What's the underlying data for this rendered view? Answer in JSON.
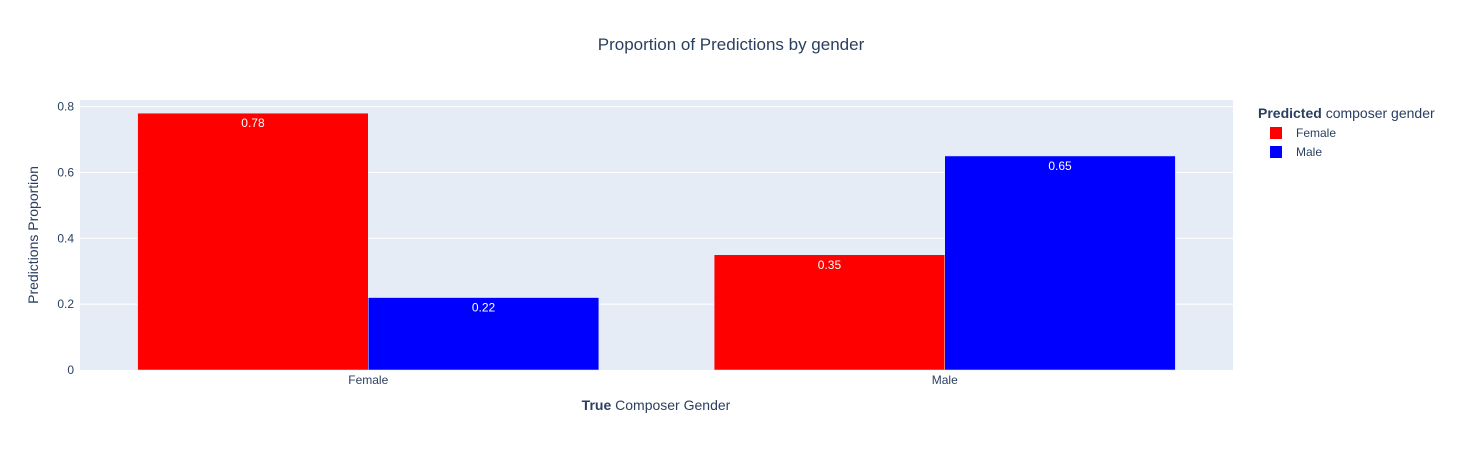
{
  "chart_data": {
    "type": "bar",
    "title": "Proportion of Predictions by gender",
    "xlabel_bold": "True",
    "xlabel_rest": " Composer Gender",
    "ylabel": "Predictions Proportion",
    "categories": [
      "Female",
      "Male"
    ],
    "series": [
      {
        "name": "Female",
        "color": "#ff0000",
        "values": [
          0.78,
          0.35
        ],
        "labels": [
          "0.78",
          "0.35"
        ]
      },
      {
        "name": "Male",
        "color": "#0000ff",
        "values": [
          0.22,
          0.65
        ],
        "labels": [
          "0.22",
          "0.65"
        ]
      }
    ],
    "ylim": [
      0,
      0.82
    ],
    "yticks": [
      0,
      0.2,
      0.4,
      0.6,
      0.8
    ],
    "ytick_labels": [
      "0",
      "0.2",
      "0.4",
      "0.6",
      "0.8"
    ],
    "grid": true,
    "legend": {
      "title_bold": "Predicted",
      "title_rest": " composer gender",
      "placement": "right"
    },
    "plot_bg": "#e5ecf6",
    "grid_color": "#ffffff"
  }
}
